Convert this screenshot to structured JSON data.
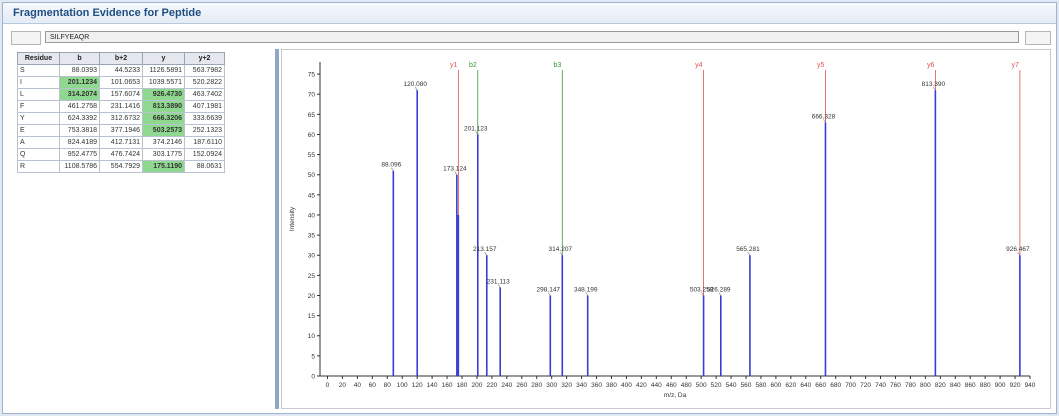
{
  "window": {
    "title": "Fragmentation Evidence for Peptide"
  },
  "peptide": {
    "sequence": "SILFYEAQR"
  },
  "table": {
    "headers": [
      "Residue",
      "b",
      "b+2",
      "y",
      "y+2"
    ],
    "rows": [
      [
        "S",
        "88.0393",
        "44.5233",
        "1126.5891",
        "563.7982"
      ],
      [
        "I",
        "201.1234",
        "101.0653",
        "1039.5571",
        "520.2822"
      ],
      [
        "L",
        "314.2074",
        "157.6074",
        "926.4730",
        "463.7402"
      ],
      [
        "F",
        "461.2758",
        "231.1416",
        "813.3890",
        "407.1981"
      ],
      [
        "Y",
        "624.3392",
        "312.6732",
        "666.3206",
        "333.6639"
      ],
      [
        "E",
        "753.3818",
        "377.1946",
        "503.2573",
        "252.1323"
      ],
      [
        "A",
        "824.4189",
        "412.7131",
        "374.2146",
        "187.6110"
      ],
      [
        "Q",
        "952.4775",
        "476.7424",
        "303.1775",
        "152.0924"
      ],
      [
        "R",
        "1108.5786",
        "554.7929",
        "175.1190",
        "88.0631"
      ]
    ],
    "highlighted": [
      [
        1,
        1
      ],
      [
        2,
        1
      ],
      [
        2,
        3
      ],
      [
        3,
        3
      ],
      [
        4,
        3
      ],
      [
        5,
        3
      ],
      [
        8,
        3
      ]
    ],
    "highlight_color": "#8fd88f"
  },
  "chart_data": {
    "type": "bar",
    "xlabel": "m/z, Da",
    "ylabel": "Intensity",
    "xlim": [
      -10,
      940
    ],
    "ylim": [
      0,
      78
    ],
    "x_ticks": [
      0,
      20,
      40,
      60,
      80,
      100,
      120,
      140,
      160,
      180,
      200,
      220,
      240,
      260,
      280,
      300,
      320,
      340,
      360,
      380,
      400,
      420,
      440,
      460,
      480,
      500,
      520,
      540,
      560,
      580,
      600,
      620,
      640,
      660,
      680,
      700,
      720,
      740,
      760,
      780,
      800,
      820,
      840,
      860,
      880,
      900,
      920,
      940
    ],
    "y_ticks": [
      0,
      5,
      10,
      15,
      20,
      25,
      30,
      35,
      40,
      45,
      50,
      55,
      60,
      65,
      70,
      75
    ],
    "peaks": [
      {
        "x": 88.096,
        "y": 51,
        "label": "88.096"
      },
      {
        "x": 120.08,
        "y": 71,
        "label": "120.080"
      },
      {
        "x": 173.124,
        "y": 50,
        "label": "173.124"
      },
      {
        "x": 175.119,
        "y": 40,
        "label": ""
      },
      {
        "x": 201.123,
        "y": 60,
        "label": "201.123"
      },
      {
        "x": 213.157,
        "y": 30,
        "label": "213.157"
      },
      {
        "x": 231.113,
        "y": 22,
        "label": "231.113"
      },
      {
        "x": 298.147,
        "y": 20,
        "label": "298.147"
      },
      {
        "x": 314.207,
        "y": 30,
        "label": "314.207"
      },
      {
        "x": 348.199,
        "y": 20,
        "label": "348.199"
      },
      {
        "x": 503.258,
        "y": 20,
        "label": "503.258"
      },
      {
        "x": 526.289,
        "y": 20,
        "label": "526.289"
      },
      {
        "x": 565.281,
        "y": 30,
        "label": "565.281"
      },
      {
        "x": 666.328,
        "y": 63,
        "label": "666.328"
      },
      {
        "x": 813.39,
        "y": 71,
        "label": "813.390"
      },
      {
        "x": 926.467,
        "y": 30,
        "label": "926.467"
      }
    ],
    "ion_markers": [
      {
        "label": "y1",
        "x": 175.119,
        "color": "#e05050"
      },
      {
        "label": "b2",
        "x": 201.123,
        "color": "#3a9a3a"
      },
      {
        "label": "b3",
        "x": 314.207,
        "color": "#3a9a3a"
      },
      {
        "label": "y4",
        "x": 503.258,
        "color": "#e05050"
      },
      {
        "label": "y5",
        "x": 666.328,
        "color": "#e05050"
      },
      {
        "label": "y6",
        "x": 813.39,
        "color": "#e05050"
      },
      {
        "label": "y7",
        "x": 926.467,
        "color": "#e05050"
      }
    ],
    "peak_color": "#3b3bd6",
    "grid": false
  }
}
